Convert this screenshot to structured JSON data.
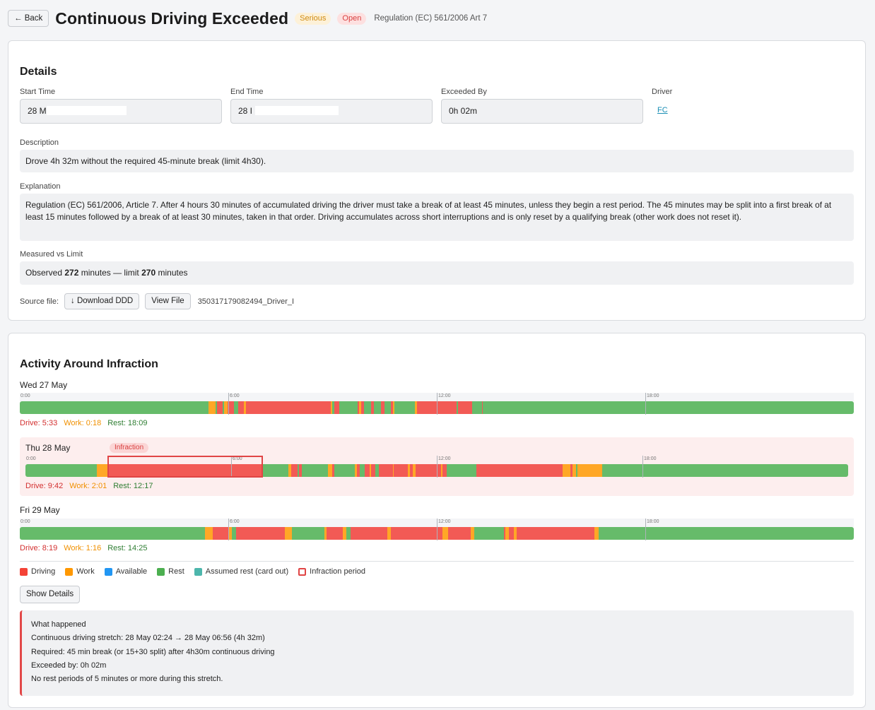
{
  "header": {
    "back_label": "← Back",
    "title": "Continuous Driving Exceeded",
    "severity": "Serious",
    "status": "Open",
    "regulation": "Regulation (EC) 561/2006 Art 7"
  },
  "details": {
    "title": "Details",
    "start_time_label": "Start Time",
    "start_time_value": "28 M",
    "end_time_label": "End Time",
    "end_time_value": "28 I",
    "exceeded_by_label": "Exceeded By",
    "exceeded_by_value": "0h 02m",
    "driver_label": "Driver",
    "driver_value": "FC",
    "description_label": "Description",
    "description_value": "Drove 4h 32m without the required 45-minute break (limit 4h30).",
    "explanation_label": "Explanation",
    "explanation_value": "Regulation (EC) 561/2006, Article 7. After 4 hours 30 minutes of accumulated driving the driver must take a break of at least 45 minutes, unless they begin a rest period. The 45 minutes may be split into a first break of at least 15 minutes followed by a break of at least 30 minutes, taken in that order. Driving accumulates across short interruptions and is only reset by a qualifying break (other work does not reset it).",
    "measured_label": "Measured vs Limit",
    "measured_prefix": "Observed",
    "measured_observed": "272",
    "measured_middle": "minutes — limit",
    "measured_limit": "270",
    "measured_suffix": "minutes",
    "source_file_label": "Source file:",
    "download_label": "↓ Download DDD",
    "view_label": "View File",
    "source_file_name": "350317179082494_Driver_I"
  },
  "activity": {
    "title": "Activity Around Infraction",
    "tick_labels": [
      "0:00",
      "6:00",
      "12:00",
      "18:00"
    ],
    "infraction_badge": "Infraction",
    "days": [
      {
        "label": "Wed 27 May",
        "drive": "Drive: 5:33",
        "work": "Work: 0:18",
        "rest": "Rest: 18:09",
        "segments": [
          {
            "type": "work",
            "start": 5.43,
            "end": 5.63
          },
          {
            "type": "drive",
            "start": 5.68,
            "end": 5.83
          },
          {
            "type": "work",
            "start": 5.87,
            "end": 5.97
          },
          {
            "type": "drive",
            "start": 5.97,
            "end": 6.17
          },
          {
            "type": "drive",
            "start": 6.28,
            "end": 6.45
          },
          {
            "type": "work",
            "start": 6.45,
            "end": 6.5
          },
          {
            "type": "drive",
            "start": 6.5,
            "end": 8.95
          },
          {
            "type": "work",
            "start": 8.95,
            "end": 9.0
          },
          {
            "type": "drive",
            "start": 9.05,
            "end": 9.2
          },
          {
            "type": "drive",
            "start": 9.73,
            "end": 9.77
          },
          {
            "type": "work",
            "start": 9.77,
            "end": 9.83
          },
          {
            "type": "drive",
            "start": 9.83,
            "end": 9.9
          },
          {
            "type": "drive",
            "start": 10.1,
            "end": 10.18
          },
          {
            "type": "drive",
            "start": 10.4,
            "end": 10.5
          },
          {
            "type": "drive",
            "start": 10.67,
            "end": 10.73
          },
          {
            "type": "work",
            "start": 10.73,
            "end": 10.77
          },
          {
            "type": "work",
            "start": 11.37,
            "end": 11.43
          },
          {
            "type": "drive",
            "start": 11.43,
            "end": 12.57
          },
          {
            "type": "drive",
            "start": 12.6,
            "end": 13.02
          },
          {
            "type": "drive",
            "start": 13.3,
            "end": 13.33
          }
        ]
      },
      {
        "label": "Thu 28 May",
        "drive": "Drive: 9:42",
        "work": "Work: 2:01",
        "rest": "Rest: 12:17",
        "infraction": {
          "start": 2.4,
          "end": 6.93
        },
        "segments": [
          {
            "type": "work",
            "start": 2.08,
            "end": 2.4
          },
          {
            "type": "drive",
            "start": 2.4,
            "end": 6.93
          },
          {
            "type": "work",
            "start": 7.68,
            "end": 7.75
          },
          {
            "type": "drive",
            "start": 7.75,
            "end": 7.93
          },
          {
            "type": "drive",
            "start": 7.98,
            "end": 8.07
          },
          {
            "type": "work",
            "start": 8.82,
            "end": 8.95
          },
          {
            "type": "drive",
            "start": 8.95,
            "end": 9.01
          },
          {
            "type": "work",
            "start": 9.6,
            "end": 9.68
          },
          {
            "type": "drive",
            "start": 9.68,
            "end": 9.75
          },
          {
            "type": "drive",
            "start": 9.9,
            "end": 10.05
          },
          {
            "type": "work",
            "start": 10.05,
            "end": 10.08
          },
          {
            "type": "drive",
            "start": 10.08,
            "end": 10.2
          },
          {
            "type": "drive",
            "start": 10.3,
            "end": 10.72
          },
          {
            "type": "work",
            "start": 10.72,
            "end": 10.75
          },
          {
            "type": "drive",
            "start": 10.75,
            "end": 11.15
          },
          {
            "type": "work",
            "start": 11.15,
            "end": 11.22
          },
          {
            "type": "drive",
            "start": 11.22,
            "end": 11.3
          },
          {
            "type": "work",
            "start": 11.3,
            "end": 11.38
          },
          {
            "type": "drive",
            "start": 11.38,
            "end": 12.12
          },
          {
            "type": "work",
            "start": 12.12,
            "end": 12.17
          },
          {
            "type": "drive",
            "start": 12.17,
            "end": 12.28
          },
          {
            "type": "drive",
            "start": 13.15,
            "end": 15.68
          },
          {
            "type": "work",
            "start": 15.68,
            "end": 15.9
          },
          {
            "type": "drive",
            "start": 15.9,
            "end": 15.95
          },
          {
            "type": "work",
            "start": 15.95,
            "end": 16.06
          },
          {
            "type": "work",
            "start": 16.1,
            "end": 16.82
          }
        ]
      },
      {
        "label": "Fri 29 May",
        "drive": "Drive: 8:19",
        "work": "Work: 1:16",
        "rest": "Rest: 14:25",
        "segments": [
          {
            "type": "work",
            "start": 5.33,
            "end": 5.55
          },
          {
            "type": "drive",
            "start": 5.55,
            "end": 6.02
          },
          {
            "type": "work",
            "start": 6.02,
            "end": 6.1
          },
          {
            "type": "drive",
            "start": 6.23,
            "end": 7.62
          },
          {
            "type": "work",
            "start": 7.62,
            "end": 7.83
          },
          {
            "type": "work",
            "start": 8.77,
            "end": 8.83
          },
          {
            "type": "drive",
            "start": 8.83,
            "end": 9.3
          },
          {
            "type": "work",
            "start": 9.3,
            "end": 9.4
          },
          {
            "type": "drive",
            "start": 9.52,
            "end": 10.57
          },
          {
            "type": "work",
            "start": 10.57,
            "end": 10.67
          },
          {
            "type": "drive",
            "start": 10.67,
            "end": 12.17
          },
          {
            "type": "work",
            "start": 12.17,
            "end": 12.33
          },
          {
            "type": "drive",
            "start": 12.33,
            "end": 12.98
          },
          {
            "type": "work",
            "start": 12.98,
            "end": 13.08
          },
          {
            "type": "drive",
            "start": 13.93,
            "end": 13.97
          },
          {
            "type": "work",
            "start": 13.97,
            "end": 14.08
          },
          {
            "type": "drive",
            "start": 14.08,
            "end": 14.22
          },
          {
            "type": "work",
            "start": 14.22,
            "end": 14.3
          },
          {
            "type": "drive",
            "start": 14.3,
            "end": 16.53
          },
          {
            "type": "work",
            "start": 16.53,
            "end": 16.65
          }
        ]
      }
    ],
    "legend": [
      {
        "label": "Driving",
        "key": "drive"
      },
      {
        "label": "Work",
        "key": "work"
      },
      {
        "label": "Available",
        "key": "available"
      },
      {
        "label": "Rest",
        "key": "rest"
      },
      {
        "label": "Assumed rest (card out)",
        "key": "assumed"
      },
      {
        "label": "Infraction period",
        "key": "infraction"
      }
    ],
    "show_details_label": "Show Details",
    "what_happened": {
      "title": "What happened",
      "lines": [
        "Continuous driving stretch: 28 May 02:24 → 28 May 06:56 (4h 32m)",
        "Required: 45 min break (or 15+30 split) after 4h30m continuous driving",
        "Exceeded by: 0h 02m",
        "No rest periods of 5 minutes or more during this stretch."
      ]
    }
  },
  "colors": {
    "drive": "#f25a55",
    "work": "#ffa726",
    "available": "#2196f3",
    "rest": "#66bb6a",
    "assumed": "#4db6ac",
    "infraction": "#e04545"
  }
}
